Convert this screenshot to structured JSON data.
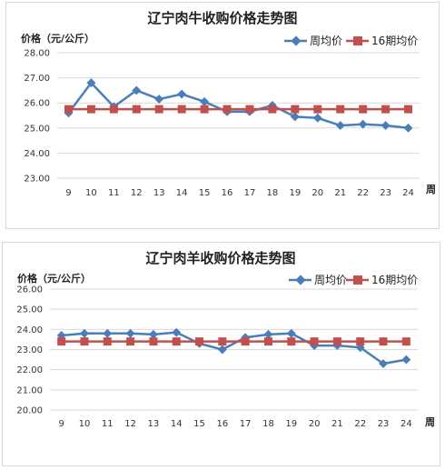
{
  "chart_data": [
    {
      "type": "line",
      "title": "辽宁肉牛收购价格走势图",
      "ylabel": "价格（元/公斤）",
      "xlabel": "周",
      "categories": [
        "9",
        "10",
        "11",
        "12",
        "13",
        "14",
        "15",
        "16",
        "17",
        "18",
        "19",
        "20",
        "21",
        "22",
        "23",
        "24"
      ],
      "ylim": [
        23.0,
        28.0
      ],
      "yticks": [
        "28.00",
        "27.00",
        "26.00",
        "25.00",
        "24.00",
        "23.00"
      ],
      "ytick_values": [
        28,
        27,
        26,
        25,
        24,
        23
      ],
      "grid": true,
      "legend_position": "top-right",
      "series": [
        {
          "name": "周均价",
          "color": "#4a7ebb",
          "marker": "diamond",
          "values": [
            25.6,
            26.8,
            25.85,
            26.5,
            26.15,
            26.35,
            26.05,
            25.65,
            25.65,
            25.9,
            25.45,
            25.4,
            25.1,
            25.15,
            25.1,
            25.0
          ]
        },
        {
          "name": "16期均价",
          "color": "#c0504d",
          "marker": "square",
          "values": [
            25.75,
            25.75,
            25.75,
            25.75,
            25.75,
            25.75,
            25.75,
            25.75,
            25.75,
            25.75,
            25.75,
            25.75,
            25.75,
            25.75,
            25.75,
            25.75
          ]
        }
      ]
    },
    {
      "type": "line",
      "title": "辽宁肉羊收购价格走势图",
      "ylabel": "价格（元/公斤）",
      "xlabel": "周",
      "categories": [
        "9",
        "10",
        "11",
        "12",
        "13",
        "14",
        "15",
        "16",
        "17",
        "18",
        "19",
        "20",
        "21",
        "22",
        "23",
        "24"
      ],
      "ylim": [
        20.0,
        26.0
      ],
      "yticks": [
        "26.00",
        "25.00",
        "24.00",
        "23.00",
        "22.00",
        "21.00",
        "20.00"
      ],
      "ytick_values": [
        26,
        25,
        24,
        23,
        22,
        21,
        20
      ],
      "grid": true,
      "legend_position": "top-right",
      "series": [
        {
          "name": "周均价",
          "color": "#4a7ebb",
          "marker": "diamond",
          "values": [
            23.7,
            23.8,
            23.8,
            23.8,
            23.75,
            23.85,
            23.3,
            23.0,
            23.6,
            23.75,
            23.8,
            23.2,
            23.2,
            23.1,
            22.3,
            22.5
          ]
        },
        {
          "name": "16期均价",
          "color": "#c0504d",
          "marker": "square",
          "values": [
            23.4,
            23.4,
            23.4,
            23.4,
            23.4,
            23.4,
            23.4,
            23.4,
            23.4,
            23.4,
            23.4,
            23.4,
            23.4,
            23.4,
            23.4,
            23.4
          ]
        }
      ]
    }
  ]
}
